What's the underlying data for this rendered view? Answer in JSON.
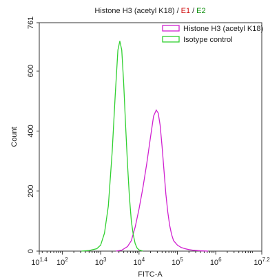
{
  "chart_data": {
    "type": "line",
    "title_parts": [
      {
        "text": "Histone H3 (acetyl K18) /",
        "color": "#222222"
      },
      {
        "text": "E1",
        "color": "#d01010"
      },
      {
        "text": "/",
        "color": "#222222"
      },
      {
        "text": "E2",
        "color": "#109010"
      }
    ],
    "x_label": "FITC-A",
    "y_label": "Count",
    "x_scale": "log10",
    "xlim": [
      1.4,
      7.2
    ],
    "xticks": [
      {
        "value": 1.4,
        "label": "10",
        "label_sup": "1.4"
      },
      {
        "value": 2,
        "label": "10",
        "label_sup": "2"
      },
      {
        "value": 3,
        "label": "10",
        "label_sup": "3"
      },
      {
        "value": 4,
        "label": "10",
        "label_sup": "4"
      },
      {
        "value": 5,
        "label": "10",
        "label_sup": "5"
      },
      {
        "value": 6,
        "label": "10",
        "label_sup": "6"
      },
      {
        "value": 7.2,
        "label": "10",
        "label_sup": "7.2"
      }
    ],
    "ylim": [
      0,
      761
    ],
    "yticks": [
      0,
      200,
      400,
      600,
      761
    ],
    "legend": "top-right",
    "series": [
      {
        "name": "Histone H3 (acetyl K18)",
        "color": "#d020d0",
        "x": [
          3.4,
          3.55,
          3.7,
          3.8,
          3.9,
          4.0,
          4.1,
          4.2,
          4.3,
          4.38,
          4.45,
          4.5,
          4.55,
          4.6,
          4.65,
          4.7,
          4.75,
          4.8,
          4.85,
          4.9,
          5.0,
          5.1,
          5.2,
          5.3,
          5.4,
          5.6,
          5.8
        ],
        "values": [
          0,
          3,
          15,
          35,
          80,
          140,
          210,
          290,
          380,
          450,
          470,
          460,
          420,
          350,
          270,
          190,
          130,
          85,
          55,
          35,
          20,
          12,
          8,
          5,
          3,
          1,
          0
        ]
      },
      {
        "name": "Isotype control",
        "color": "#30d030",
        "x": [
          2.5,
          2.7,
          2.9,
          3.0,
          3.1,
          3.2,
          3.3,
          3.38,
          3.45,
          3.5,
          3.55,
          3.6,
          3.65,
          3.7,
          3.75,
          3.8,
          3.85,
          3.9,
          3.95,
          4.0,
          4.1
        ],
        "values": [
          0,
          2,
          8,
          20,
          60,
          150,
          330,
          520,
          670,
          700,
          670,
          560,
          420,
          290,
          180,
          100,
          55,
          25,
          10,
          4,
          0
        ]
      }
    ]
  }
}
